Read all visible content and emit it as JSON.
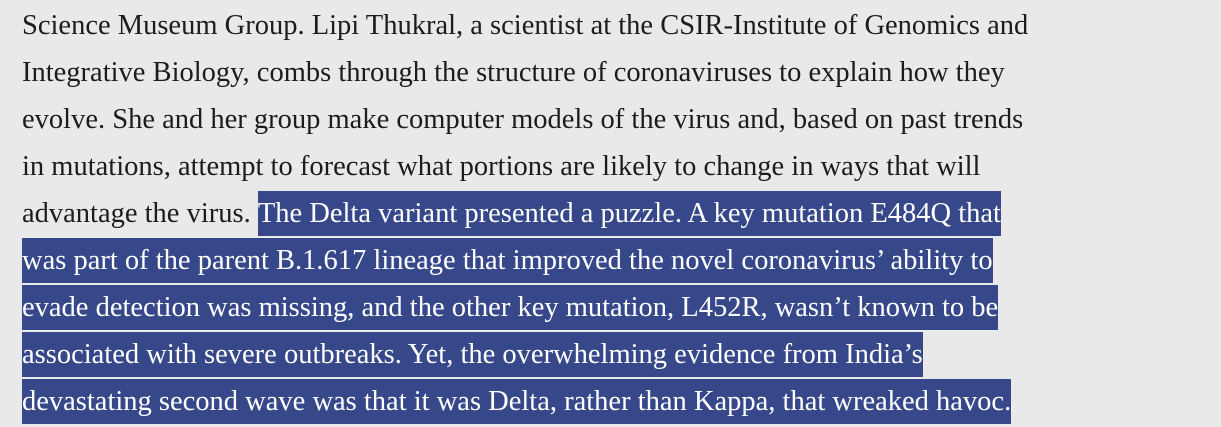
{
  "passage": {
    "plain": [
      "Science Museum Group. Lipi Thukral, a scientist at the CSIR-Institute of Genomics and",
      "Integrative Biology, combs through the structure of coronaviruses to explain how they",
      "evolve. She and her group make computer models of the virus and, based on past trends",
      "in mutations, attempt to forecast what portions are likely to change in ways that will",
      "advantage the virus."
    ],
    "selected": [
      "The Delta variant presented a puzzle. A key mutation E484Q that",
      "was part of the parent B.1.617 lineage that improved the novel coronavirus’ ability to",
      "evade detection was missing, and the other key mutation, L452R, wasn’t known to be",
      "associated with severe outbreaks. Yet, the overwhelming evidence from India’s",
      "devastating second wave was that it was Delta, rather than Kappa, that wreaked havoc."
    ]
  }
}
